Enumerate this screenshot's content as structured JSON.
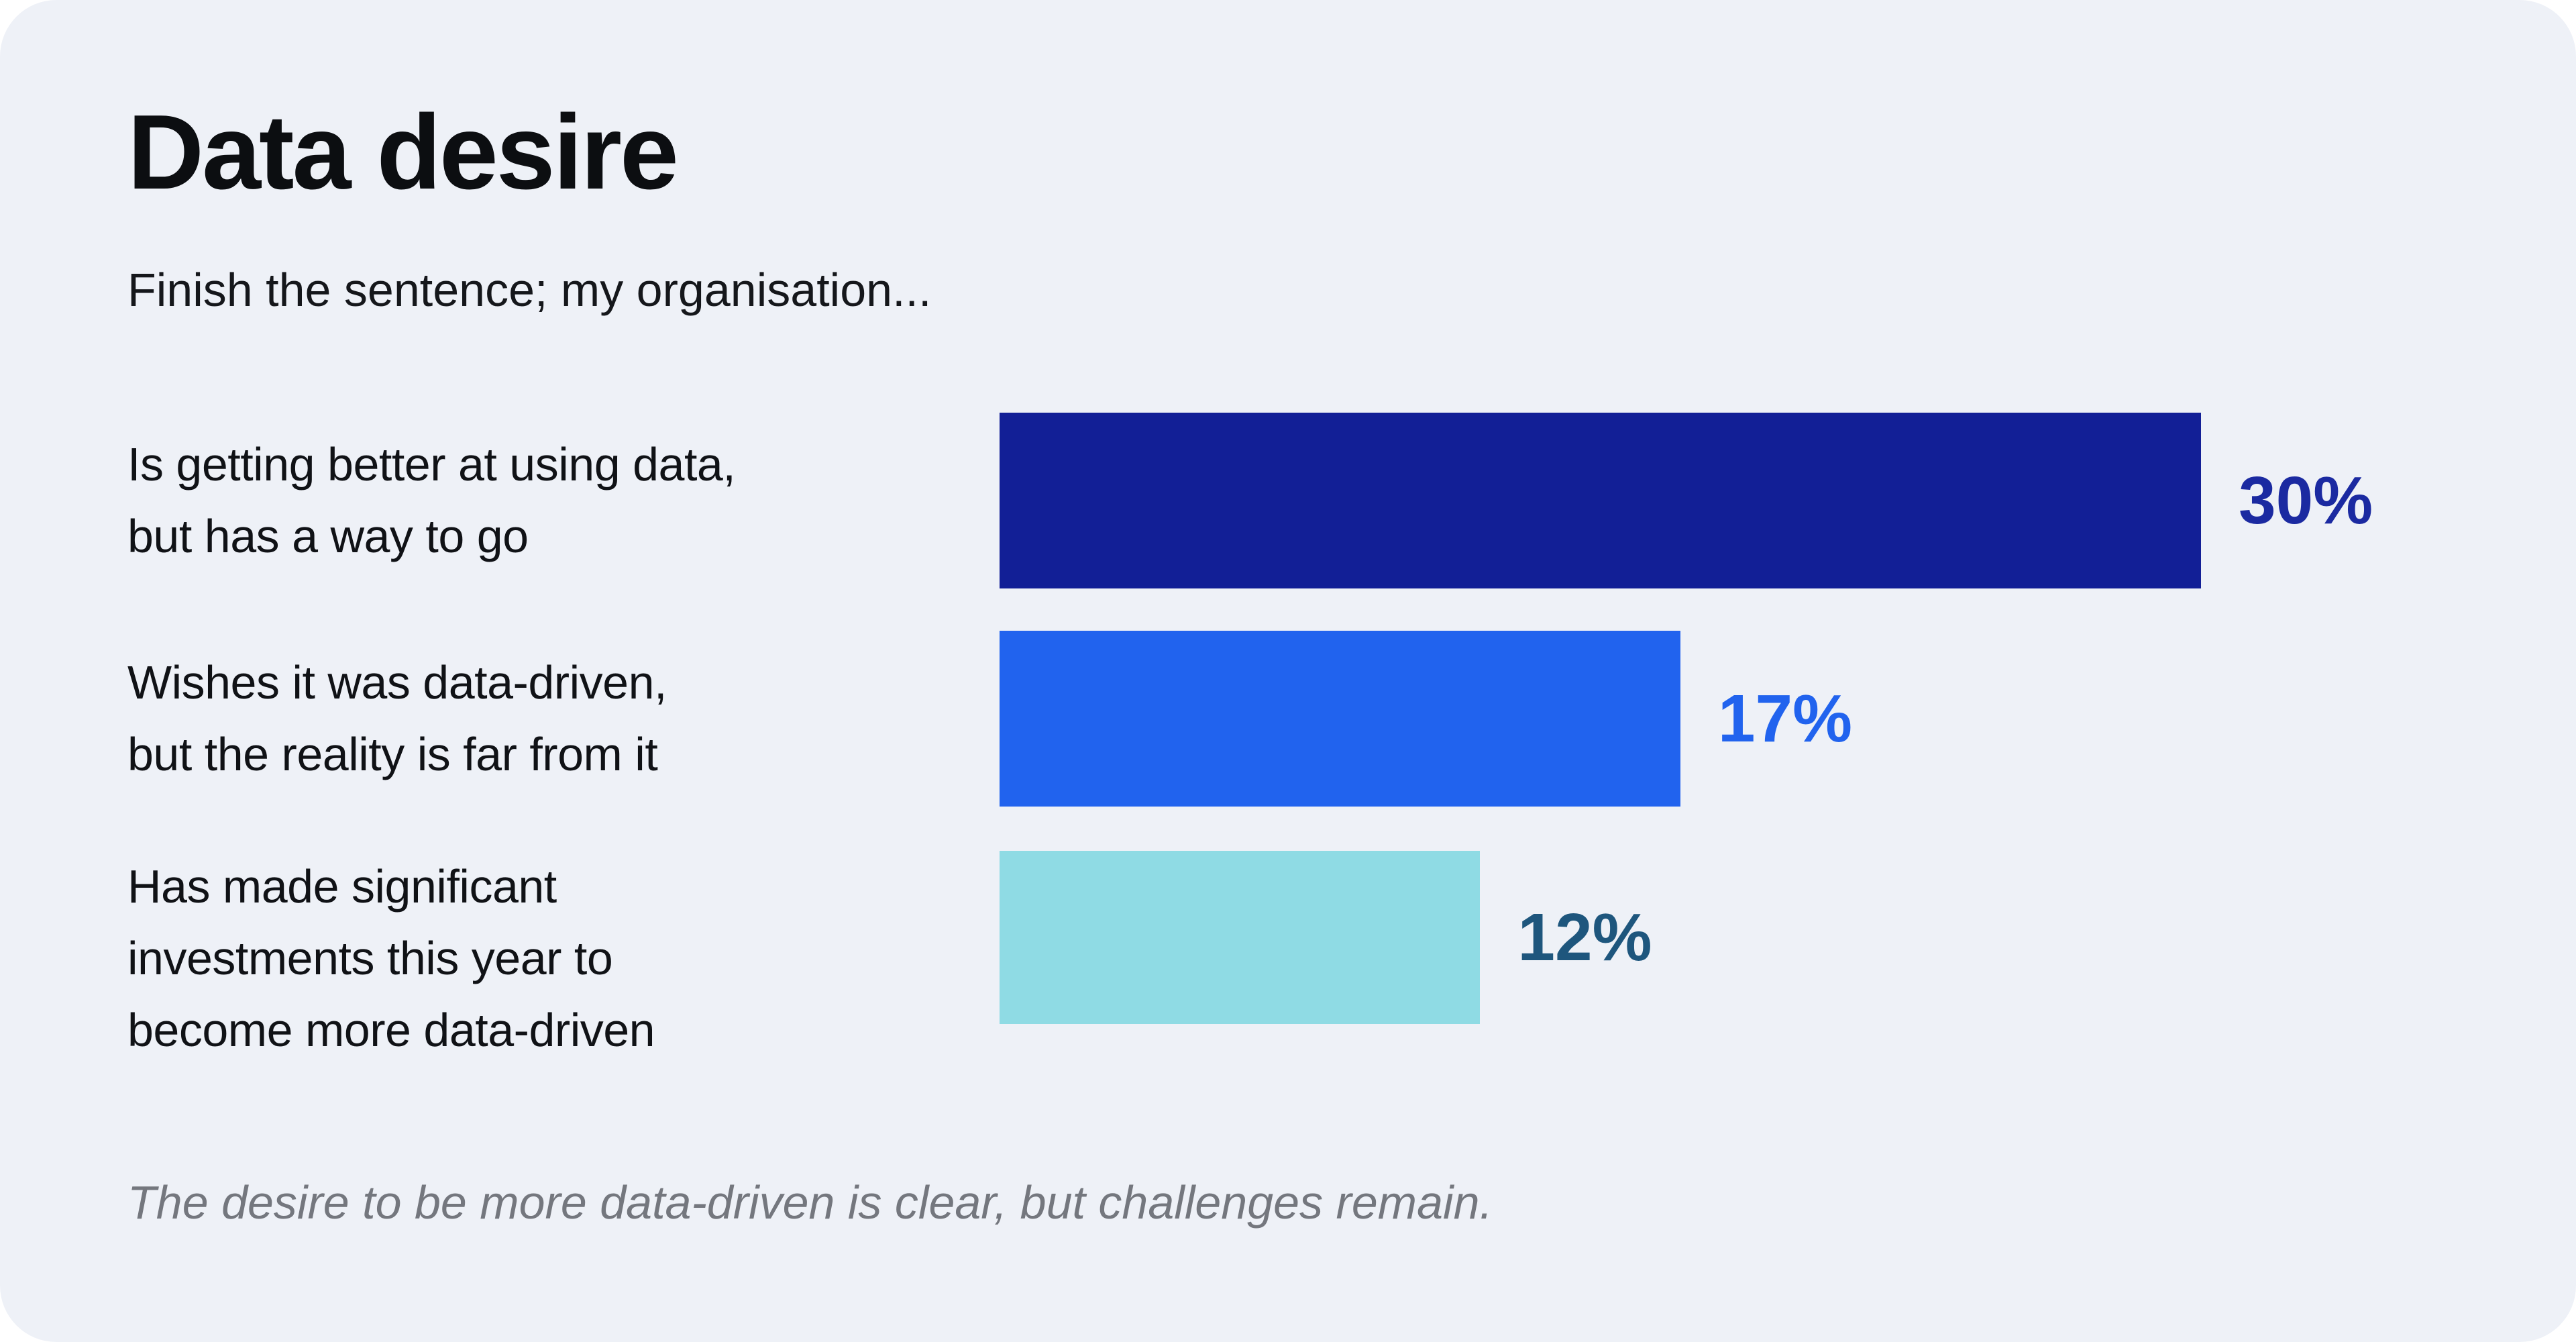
{
  "card": {
    "title": "Data desire",
    "subtitle": "Finish the sentence; my organisation...",
    "footnote": "The desire to be more data-driven is clear, but challenges remain."
  },
  "colors": {
    "page_background": "#ffffff",
    "card_background": "#eef1f7",
    "title_text": "#0c0e11",
    "label_text": "#101216",
    "footnote_text": "#74777e"
  },
  "chart_data": {
    "type": "bar",
    "orientation": "horizontal",
    "title": "Data desire",
    "subtitle": "Finish the sentence; my organisation...",
    "categories": [
      "Is getting better at using data, but has a way to go",
      "Wishes it was data-driven, but the reality is far from it",
      "Has made significant investments this year to become more data-driven"
    ],
    "category_lines": [
      [
        "Is getting better at using data,",
        "but has a way to go"
      ],
      [
        "Wishes it was data-driven,",
        "but the reality is far from it"
      ],
      [
        "Has made significant",
        "investments this year to",
        "become more data-driven"
      ]
    ],
    "values": [
      30,
      17,
      12
    ],
    "value_labels": [
      "30%",
      "17%",
      "12%"
    ],
    "bar_colors": [
      "#121f96",
      "#2163ee",
      "#8fdbe4"
    ],
    "value_label_colors": [
      "#1b2aa1",
      "#2163ee",
      "#1e567d"
    ],
    "xlim": [
      0,
      40
    ],
    "grid": false,
    "legend": false,
    "annotation": "The desire to be more data-driven is clear, but challenges remain."
  }
}
